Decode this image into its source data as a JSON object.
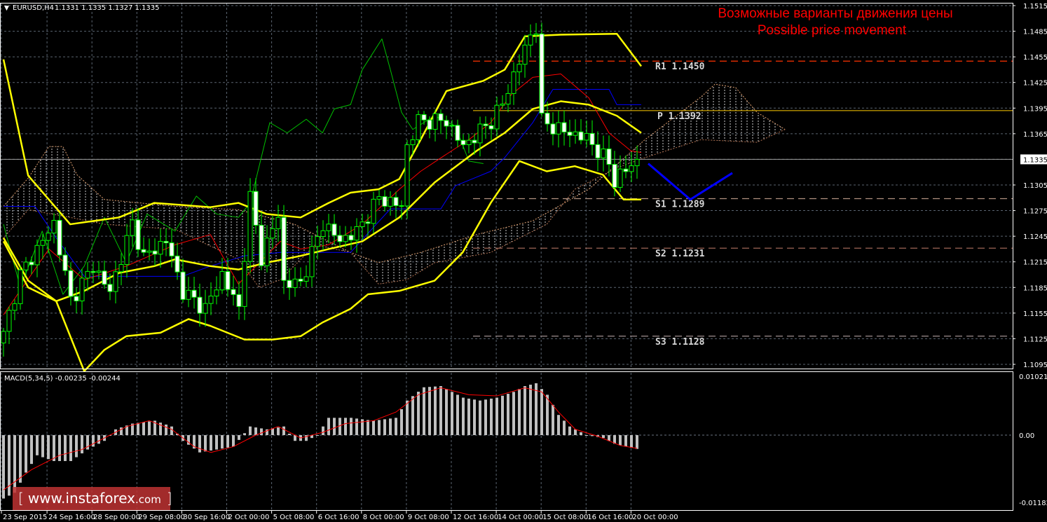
{
  "header": {
    "menu_icon": "triangle-down-icon",
    "symbol": "EURUSD,H4",
    "ohlc": "1.1331 1.1335 1.1327 1.1335"
  },
  "annotation": {
    "line1": "Возможные варианты движения цены",
    "line2": "Possible price movement",
    "color": "#ff0000"
  },
  "current_price": "1.1335",
  "price_axis": [
    "1.1515",
    "1.1485",
    "1.1455",
    "1.1425",
    "1.1395",
    "1.1365",
    "1.1305",
    "1.1275",
    "1.1245",
    "1.1215",
    "1.1185",
    "1.1155",
    "1.1125",
    "1.1095"
  ],
  "time_axis": [
    "23 Sep 2015",
    "24 Sep 16:00",
    "28 Sep 00:00",
    "29 Sep 08:00",
    "30 Sep 16:00",
    "2 Oct 00:00",
    "5 Oct 08:00",
    "6 Oct 16:00",
    "8 Oct 00:00",
    "9 Oct 08:00",
    "12 Oct 16:00",
    "14 Oct 00:00",
    "15 Oct 08:00",
    "16 Oct 16:00",
    "20 Oct 00:00"
  ],
  "levels": [
    {
      "label": "R1 1.1450",
      "price": 1.145,
      "color": "#ff3300",
      "style": "dashed"
    },
    {
      "label": "P 1.1392",
      "price": 1.1392,
      "color": "#ffcc00",
      "style": "solid"
    },
    {
      "label": "S1 1.1289",
      "price": 1.1289,
      "color": "#b09080",
      "style": "dashed"
    },
    {
      "label": "S2 1.1231",
      "price": 1.1231,
      "color": "#b07060",
      "style": "dashed"
    },
    {
      "label": "S3 1.1128",
      "price": 1.1128,
      "color": "#a09090",
      "style": "dashed"
    }
  ],
  "macd": {
    "label": "MACD(5,34,5) -0.00235 -0.00244",
    "axis": [
      "0.01021",
      "0.00",
      "-0.01182"
    ]
  },
  "watermark": {
    "open": "[",
    "site": "www.instaforex",
    "tld": ".com",
    "close": "]"
  },
  "chart_data": {
    "type": "candlestick",
    "symbol": "EURUSD",
    "timeframe": "H4",
    "ylim": [
      1.1085,
      1.1525
    ],
    "close_anchors": [
      [
        0,
        1.113
      ],
      [
        3,
        1.12
      ],
      [
        9,
        1.126
      ],
      [
        12,
        1.117
      ],
      [
        16,
        1.121
      ],
      [
        19,
        1.118
      ],
      [
        23,
        1.126
      ],
      [
        25,
        1.122
      ],
      [
        29,
        1.124
      ],
      [
        32,
        1.118
      ],
      [
        36,
        1.116
      ],
      [
        39,
        1.12
      ],
      [
        42,
        1.116
      ],
      [
        44,
        1.129
      ],
      [
        46,
        1.122
      ],
      [
        49,
        1.127
      ],
      [
        50,
        1.119
      ],
      [
        53,
        1.119
      ],
      [
        57,
        1.126
      ],
      [
        60,
        1.124
      ],
      [
        63,
        1.125
      ],
      [
        67,
        1.129
      ],
      [
        71,
        1.128
      ],
      [
        72,
        1.135
      ],
      [
        74,
        1.138
      ],
      [
        79,
        1.138
      ],
      [
        82,
        1.135
      ],
      [
        87,
        1.138
      ],
      [
        89,
        1.14
      ],
      [
        92,
        1.145
      ],
      [
        94,
        1.148
      ],
      [
        95,
        1.149
      ],
      [
        96,
        1.138
      ],
      [
        99,
        1.137
      ],
      [
        104,
        1.136
      ],
      [
        108,
        1.133
      ],
      [
        109,
        1.131
      ],
      [
        113,
        1.1335
      ]
    ],
    "bollinger": {
      "color": "#ffff00",
      "upper": [
        [
          0,
          1.1452
        ],
        [
          4.4,
          1.1316
        ],
        [
          11.9,
          1.1259
        ],
        [
          20.6,
          1.1267
        ],
        [
          26.9,
          1.1284
        ],
        [
          36.9,
          1.1279
        ],
        [
          41.9,
          1.1284
        ],
        [
          46.9,
          1.1271
        ],
        [
          53,
          1.1267
        ],
        [
          58,
          1.1284
        ],
        [
          61.9,
          1.1296
        ],
        [
          66.9,
          1.13
        ],
        [
          70.6,
          1.1312
        ],
        [
          74.4,
          1.1358
        ],
        [
          79,
          1.1415
        ],
        [
          85.6,
          1.1427
        ],
        [
          89.4,
          1.144
        ],
        [
          93,
          1.1479
        ],
        [
          99.4,
          1.1481
        ],
        [
          109.4,
          1.1482
        ],
        [
          113.75,
          1.1444
        ]
      ],
      "middle": [
        [
          0,
          1.1243
        ],
        [
          4.4,
          1.1193
        ],
        [
          9.4,
          1.1169
        ],
        [
          14.4,
          1.1181
        ],
        [
          20.6,
          1.1202
        ],
        [
          26.9,
          1.121
        ],
        [
          30.6,
          1.1218
        ],
        [
          36.9,
          1.121
        ],
        [
          41.9,
          1.1206
        ],
        [
          46.9,
          1.1214
        ],
        [
          53,
          1.1222
        ],
        [
          58,
          1.123
        ],
        [
          64,
          1.1239
        ],
        [
          70.6,
          1.1267
        ],
        [
          76.9,
          1.1308
        ],
        [
          84.4,
          1.1345
        ],
        [
          89.4,
          1.1366
        ],
        [
          94.4,
          1.1394
        ],
        [
          99.4,
          1.1403
        ],
        [
          104.4,
          1.1399
        ],
        [
          109.4,
          1.1386
        ],
        [
          113.75,
          1.1366
        ]
      ],
      "lower": [
        [
          0,
          1.1239
        ],
        [
          4.4,
          1.1185
        ],
        [
          9.4,
          1.1169
        ],
        [
          14.4,
          1.1087
        ],
        [
          18,
          1.1112
        ],
        [
          21.9,
          1.1128
        ],
        [
          28,
          1.1132
        ],
        [
          33,
          1.1148
        ],
        [
          36.9,
          1.114
        ],
        [
          43,
          1.1124
        ],
        [
          48,
          1.1124
        ],
        [
          53,
          1.1128
        ],
        [
          56.9,
          1.1144
        ],
        [
          61.9,
          1.116
        ],
        [
          65,
          1.1177
        ],
        [
          70.6,
          1.1181
        ],
        [
          76.9,
          1.1193
        ],
        [
          81.9,
          1.1226
        ],
        [
          86.9,
          1.1284
        ],
        [
          92,
          1.1333
        ],
        [
          96.9,
          1.1321
        ],
        [
          101.9,
          1.1327
        ],
        [
          106.9,
          1.1317
        ],
        [
          110.6,
          1.1288
        ],
        [
          113.75,
          1.1288
        ]
      ]
    },
    "ichimoku": {
      "tenkan": {
        "color": "#ff0000",
        "points": [
          [
            0,
            1.1153
          ],
          [
            8.1,
            1.123
          ],
          [
            14.4,
            1.1194
          ],
          [
            21.9,
            1.121
          ],
          [
            30.6,
            1.1235
          ],
          [
            36.9,
            1.1247
          ],
          [
            41.9,
            1.1189
          ],
          [
            49.4,
            1.1239
          ],
          [
            53,
            1.123
          ],
          [
            58,
            1.1235
          ],
          [
            64,
            1.1259
          ],
          [
            70.6,
            1.13
          ],
          [
            74.4,
            1.1321
          ],
          [
            79,
            1.1341
          ],
          [
            83,
            1.1358
          ],
          [
            86.9,
            1.1378
          ],
          [
            90.6,
            1.1411
          ],
          [
            94.4,
            1.1431
          ],
          [
            99.4,
            1.1435
          ],
          [
            104.4,
            1.1407
          ],
          [
            108,
            1.1366
          ],
          [
            111.9,
            1.1345
          ],
          [
            113.75,
            1.1343
          ]
        ]
      },
      "kijun": {
        "color": "#0000ff",
        "points": [
          [
            0,
            1.128
          ],
          [
            5.6,
            1.128
          ],
          [
            9.4,
            1.1243
          ],
          [
            14.4,
            1.1198
          ],
          [
            24.4,
            1.1198
          ],
          [
            31.9,
            1.1198
          ],
          [
            36.9,
            1.121
          ],
          [
            43,
            1.1222
          ],
          [
            49.4,
            1.1226
          ],
          [
            61.9,
            1.1226
          ],
          [
            69,
            1.1277
          ],
          [
            78,
            1.1277
          ],
          [
            80.6,
            1.1304
          ],
          [
            86.9,
            1.1321
          ],
          [
            89.4,
            1.1337
          ],
          [
            94.4,
            1.1378
          ],
          [
            98,
            1.1417
          ],
          [
            108,
            1.1417
          ],
          [
            109.4,
            1.1399
          ],
          [
            113.75,
            1.1399
          ]
        ]
      },
      "chikou": {
        "color": "#00c000",
        "points": [
          [
            0,
            1.1259
          ],
          [
            3,
            1.1185
          ],
          [
            6.9,
            1.1251
          ],
          [
            10.6,
            1.1177
          ],
          [
            14.4,
            1.121
          ],
          [
            18,
            1.1267
          ],
          [
            21.9,
            1.1214
          ],
          [
            25.6,
            1.1271
          ],
          [
            30.6,
            1.1251
          ],
          [
            34.4,
            1.1292
          ],
          [
            38,
            1.1271
          ],
          [
            41.9,
            1.1267
          ],
          [
            44,
            1.1284
          ],
          [
            47.5,
            1.1378
          ],
          [
            50.6,
            1.1366
          ],
          [
            54,
            1.1382
          ],
          [
            56.9,
            1.1366
          ],
          [
            59,
            1.1394
          ],
          [
            61.9,
            1.1399
          ],
          [
            64,
            1.144
          ],
          [
            67.5,
            1.1476
          ],
          [
            69,
            1.144
          ],
          [
            71,
            1.139
          ],
          [
            73,
            1.137
          ],
          [
            76.9,
            1.1386
          ],
          [
            80.6,
            1.1374
          ],
          [
            83,
            1.1333
          ],
          [
            85.6,
            1.133
          ]
        ]
      },
      "span_a": {
        "color": "#e0a070",
        "points": [
          [
            0,
            1.128
          ],
          [
            4.4,
            1.1313
          ],
          [
            8.1,
            1.135
          ],
          [
            10.6,
            1.135
          ],
          [
            13.1,
            1.1317
          ],
          [
            18,
            1.1288
          ],
          [
            30.6,
            1.128
          ],
          [
            41.9,
            1.1276
          ],
          [
            51.9,
            1.1259
          ],
          [
            61.9,
            1.1226
          ],
          [
            66.9,
            1.1214
          ],
          [
            74.4,
            1.1226
          ],
          [
            84.4,
            1.1247
          ],
          [
            94.4,
            1.1263
          ],
          [
            104.4,
            1.13
          ],
          [
            114.4,
            1.1358
          ],
          [
            124.4,
            1.1408
          ],
          [
            126.9,
            1.1423
          ],
          [
            130.6,
            1.1419
          ],
          [
            134.4,
            1.139
          ],
          [
            139.4,
            1.137
          ]
        ]
      },
      "span_b": {
        "color": "#b07050",
        "points": [
          [
            0,
            1.1243
          ],
          [
            4.4,
            1.1276
          ],
          [
            11.9,
            1.1267
          ],
          [
            18,
            1.1259
          ],
          [
            30.6,
            1.1253
          ],
          [
            41.9,
            1.1218
          ],
          [
            45.6,
            1.1185
          ],
          [
            49.4,
            1.1194
          ],
          [
            55.6,
            1.1235
          ],
          [
            61.9,
            1.1226
          ],
          [
            66.9,
            1.1189
          ],
          [
            71.9,
            1.1194
          ],
          [
            76.9,
            1.1214
          ],
          [
            86.9,
            1.1226
          ],
          [
            96.9,
            1.1259
          ],
          [
            101.9,
            1.13
          ],
          [
            109.4,
            1.1325
          ],
          [
            114.4,
            1.1337
          ],
          [
            124.4,
            1.1358
          ],
          [
            134.4,
            1.1355
          ],
          [
            139.4,
            1.137
          ]
        ]
      }
    },
    "projection": {
      "color": "#0000ff",
      "points": [
        [
          115,
          1.133
        ],
        [
          122.5,
          1.1288
        ],
        [
          130,
          1.1319
        ]
      ]
    },
    "macd": {
      "ylim": [
        -0.01182,
        0.01021
      ],
      "histogram_anchors": [
        [
          0,
          -0.011
        ],
        [
          2,
          -0.01
        ],
        [
          4,
          -0.0065
        ],
        [
          6,
          -0.0035
        ],
        [
          9,
          -0.0045
        ],
        [
          12,
          -0.0045
        ],
        [
          15,
          -0.0025
        ],
        [
          18,
          -0.001
        ],
        [
          20,
          0.001
        ],
        [
          23,
          0.002
        ],
        [
          27,
          0.0025
        ],
        [
          30,
          0.0015
        ],
        [
          32,
          -0.001
        ],
        [
          35,
          -0.003
        ],
        [
          38,
          -0.0025
        ],
        [
          41,
          -0.002
        ],
        [
          44,
          0.0015
        ],
        [
          47,
          0.001
        ],
        [
          50,
          0.0015
        ],
        [
          52,
          -0.001
        ],
        [
          54,
          -0.001
        ],
        [
          56,
          0.0
        ],
        [
          58,
          0.003
        ],
        [
          62,
          0.003
        ],
        [
          66,
          0.0025
        ],
        [
          70,
          0.003
        ],
        [
          72,
          0.006
        ],
        [
          75,
          0.0083
        ],
        [
          78,
          0.0085
        ],
        [
          82,
          0.0065
        ],
        [
          85,
          0.006
        ],
        [
          88,
          0.0065
        ],
        [
          91,
          0.0075
        ],
        [
          93,
          0.0085
        ],
        [
          95,
          0.009
        ],
        [
          97,
          0.007
        ],
        [
          99,
          0.0035
        ],
        [
          101,
          0.0015
        ],
        [
          104,
          0.0
        ],
        [
          107,
          -0.0005
        ],
        [
          109,
          -0.0015
        ],
        [
          111,
          -0.002
        ],
        [
          113,
          -0.0024
        ]
      ],
      "signal": {
        "color": "#ff0000",
        "points": [
          [
            0,
            -0.0095
          ],
          [
            5,
            -0.006
          ],
          [
            10,
            -0.0035
          ],
          [
            14,
            -0.0025
          ],
          [
            18,
            -0.0005
          ],
          [
            22,
            0.0015
          ],
          [
            26,
            0.0025
          ],
          [
            30,
            0.001
          ],
          [
            34,
            -0.002
          ],
          [
            37,
            -0.003
          ],
          [
            41,
            -0.002
          ],
          [
            45,
            0.0
          ],
          [
            49,
            0.0015
          ],
          [
            53,
            -0.0005
          ],
          [
            57,
            0.0005
          ],
          [
            61,
            0.002
          ],
          [
            66,
            0.0025
          ],
          [
            70,
            0.004
          ],
          [
            74,
            0.007
          ],
          [
            78,
            0.0082
          ],
          [
            83,
            0.007
          ],
          [
            88,
            0.0068
          ],
          [
            93,
            0.0082
          ],
          [
            96,
            0.0075
          ],
          [
            99,
            0.004
          ],
          [
            102,
            0.001
          ],
          [
            106,
            -0.0002
          ],
          [
            110,
            -0.0018
          ],
          [
            113,
            -0.0023
          ]
        ]
      }
    }
  }
}
